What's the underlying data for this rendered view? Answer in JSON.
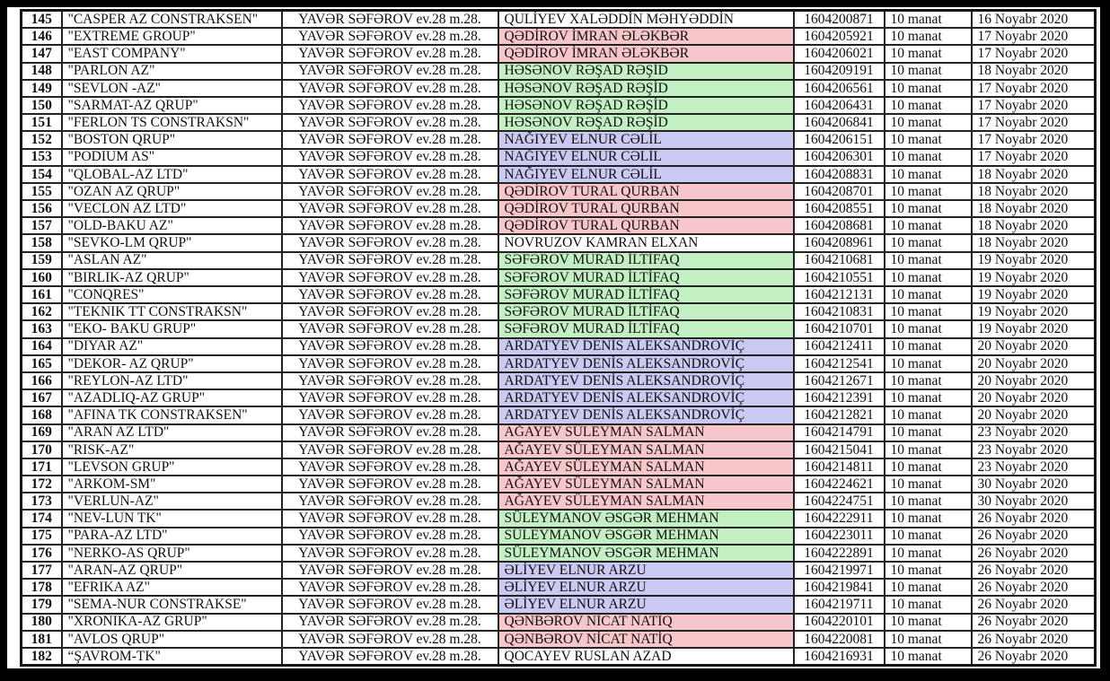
{
  "highlight_colors": {
    "none": "#ffffff",
    "pink": "#f7c6cb",
    "green": "#c2f0c2",
    "blue": "#c9c9f1"
  },
  "table": {
    "rows": [
      {
        "n": "145",
        "company": "\"CASPER AZ CONSTRAKSEN\"",
        "address": "YAVƏR SƏFƏROV ev.28 m.28.",
        "person": "QULİYEV XALƏDDİN MƏHYƏDDİN",
        "number": "1604200871",
        "amount": "10 manat",
        "date": "16 Noyabr 2020",
        "highlight": "none"
      },
      {
        "n": "146",
        "company": "\"EXTREME GROUP\"",
        "address": "YAVƏR SƏFƏROV ev.28 m.28.",
        "person": "QƏDİROV İMRAN ƏLƏKBƏR",
        "number": "1604205921",
        "amount": "10 manat",
        "date": "17 Noyabr 2020",
        "highlight": "pink"
      },
      {
        "n": "147",
        "company": "\"EAST COMPANY\"",
        "address": "YAVƏR SƏFƏROV ev.28 m.28.",
        "person": "QƏDİROV İMRAN ƏLƏKBƏR",
        "number": "1604206021",
        "amount": "10 manat",
        "date": "17 Noyabr 2020",
        "highlight": "pink"
      },
      {
        "n": "148",
        "company": "\"PARLON AZ\"",
        "address": "YAVƏR SƏFƏROV ev.28 m.28.",
        "person": "HƏSƏNOV RƏŞAD RƏŞİD",
        "number": "1604209191",
        "amount": "10 manat",
        "date": "18 Noyabr 2020",
        "highlight": "green"
      },
      {
        "n": "149",
        "company": "\"SEVLON -AZ\"",
        "address": "YAVƏR SƏFƏROV ev.28 m.28.",
        "person": "HƏSƏNOV RƏŞAD RƏŞİD",
        "number": "1604206561",
        "amount": "10 manat",
        "date": "17 Noyabr 2020",
        "highlight": "green"
      },
      {
        "n": "150",
        "company": "\"SARMAT-AZ QRUP\"",
        "address": "YAVƏR SƏFƏROV ev.28 m.28.",
        "person": "HƏSƏNOV RƏŞAD RƏŞİD",
        "number": "1604206431",
        "amount": "10 manat",
        "date": "17 Noyabr 2020",
        "highlight": "green"
      },
      {
        "n": "151",
        "company": "\"FERLON TS CONSTRAKSN\"",
        "address": "YAVƏR SƏFƏROV ev.28 m.28.",
        "person": "HƏSƏNOV RƏŞAD RƏŞİD",
        "number": "1604206841",
        "amount": "10 manat",
        "date": "17 Noyabr 2020",
        "highlight": "green"
      },
      {
        "n": "152",
        "company": "\"BOSTON QRUP\"",
        "address": "YAVƏR SƏFƏROV ev.28 m.28.",
        "person": "NAĞIYEV ELNUR CƏLİL",
        "number": "1604206151",
        "amount": "10 manat",
        "date": "17 Noyabr 2020",
        "highlight": "blue"
      },
      {
        "n": "153",
        "company": "\"PODIUM AS\"",
        "address": "YAVƏR SƏFƏROV ev.28 m.28.",
        "person": "NAĞIYEV ELNUR CƏLİL",
        "number": "1604206301",
        "amount": "10 manat",
        "date": "17 Noyabr 2020",
        "highlight": "blue"
      },
      {
        "n": "154",
        "company": "\"QLOBAL-AZ LTD\"",
        "address": "YAVƏR SƏFƏROV ev.28 m.28.",
        "person": "NAĞIYEV ELNUR CƏLİL",
        "number": "1604208831",
        "amount": "10 manat",
        "date": "18 Noyabr 2020",
        "highlight": "blue"
      },
      {
        "n": "155",
        "company": "\"OZAN AZ QRUP\"",
        "address": "YAVƏR SƏFƏROV ev.28 m.28.",
        "person": "QƏDİROV TURAL QURBAN",
        "number": "1604208701",
        "amount": "10 manat",
        "date": "18 Noyabr 2020",
        "highlight": "pink"
      },
      {
        "n": "156",
        "company": "\"VECLON AZ LTD\"",
        "address": "YAVƏR SƏFƏROV ev.28 m.28.",
        "person": "QƏDİROV TURAL QURBAN",
        "number": "1604208551",
        "amount": "10 manat",
        "date": "18 Noyabr 2020",
        "highlight": "pink"
      },
      {
        "n": "157",
        "company": "\"OLD-BAKU AZ\"",
        "address": "YAVƏR SƏFƏROV ev.28 m.28.",
        "person": "QƏDİROV TURAL QURBAN",
        "number": "1604208681",
        "amount": "10 manat",
        "date": "18 Noyabr 2020",
        "highlight": "pink"
      },
      {
        "n": "158",
        "company": "\"SEVKO-LM QRUP\"",
        "address": "YAVƏR SƏFƏROV ev.28 m.28.",
        "person": "NOVRUZOV KAMRAN ELXAN",
        "number": "1604208961",
        "amount": "10 manat",
        "date": "18 Noyabr 2020",
        "highlight": "none"
      },
      {
        "n": "159",
        "company": "\"ASLAN AZ\"",
        "address": "YAVƏR SƏFƏROV ev.28 m.28.",
        "person": "SƏFƏROV MURAD İLTİFAQ",
        "number": "1604210681",
        "amount": "10 manat",
        "date": "19 Noyabr 2020",
        "highlight": "green"
      },
      {
        "n": "160",
        "company": "\"BIRLIK-AZ QRUP\"",
        "address": "YAVƏR SƏFƏROV ev.28 m.28.",
        "person": "SƏFƏROV MURAD İLTİFAQ",
        "number": "1604210551",
        "amount": "10 manat",
        "date": "19 Noyabr 2020",
        "highlight": "green"
      },
      {
        "n": "161",
        "company": "\"CONQRES\"",
        "address": "YAVƏR SƏFƏROV ev.28 m.28.",
        "person": "SƏFƏROV MURAD İLTİFAQ",
        "number": "1604212131",
        "amount": "10 manat",
        "date": "19 Noyabr 2020",
        "highlight": "green"
      },
      {
        "n": "162",
        "company": "\"TEKNIK TT CONSTRAKSN\"",
        "address": "YAVƏR SƏFƏROV ev.28 m.28.",
        "person": "SƏFƏROV MURAD İLTİFAQ",
        "number": "1604210831",
        "amount": "10 manat",
        "date": "19 Noyabr 2020",
        "highlight": "green"
      },
      {
        "n": "163",
        "company": "\"EKO- BAKU GRUP\"",
        "address": "YAVƏR SƏFƏROV ev.28 m.28.",
        "person": "SƏFƏROV MURAD İLTİFAQ",
        "number": "1604210701",
        "amount": "10 manat",
        "date": "19 Noyabr 2020",
        "highlight": "green"
      },
      {
        "n": "164",
        "company": "\"DIYAR AZ\"",
        "address": "YAVƏR SƏFƏROV ev.28 m.28.",
        "person": "ARDATYEV DENİS ALEKSANDROVİÇ",
        "number": "1604212411",
        "amount": "10 manat",
        "date": "20 Noyabr 2020",
        "highlight": "blue"
      },
      {
        "n": "165",
        "company": "\"DEKOR- AZ QRUP\"",
        "address": "YAVƏR SƏFƏROV ev.28 m.28.",
        "person": "ARDATYEV DENİS ALEKSANDROVİÇ",
        "number": "1604212541",
        "amount": "10 manat",
        "date": "20 Noyabr 2020",
        "highlight": "blue"
      },
      {
        "n": "166",
        "company": "\"REYLON-AZ LTD\"",
        "address": "YAVƏR SƏFƏROV ev.28 m.28.",
        "person": "ARDATYEV DENİS ALEKSANDROVİÇ",
        "number": "1604212671",
        "amount": "10 manat",
        "date": "20 Noyabr 2020",
        "highlight": "blue"
      },
      {
        "n": "167",
        "company": "\"AZADLIQ-AZ GRUP\"",
        "address": "YAVƏR SƏFƏROV ev.28 m.28.",
        "person": "ARDATYEV DENİS ALEKSANDROVİÇ",
        "number": "1604212391",
        "amount": "10 manat",
        "date": "20 Noyabr 2020",
        "highlight": "blue"
      },
      {
        "n": "168",
        "company": "\"AFINA TK CONSTRAKSEN\"",
        "address": "YAVƏR SƏFƏROV ev.28 m.28.",
        "person": "ARDATYEV DENİS ALEKSANDROVİÇ",
        "number": "1604212821",
        "amount": "10 manat",
        "date": "20 Noyabr 2020",
        "highlight": "blue"
      },
      {
        "n": "169",
        "company": "\"ARAN AZ LTD\"",
        "address": "YAVƏR SƏFƏROV ev.28 m.28.",
        "person": "AĞAYEV SÜLEYMAN SALMAN",
        "number": "1604214791",
        "amount": "10 manat",
        "date": "23 Noyabr 2020",
        "highlight": "pink"
      },
      {
        "n": "170",
        "company": "\"RISK-AZ\"",
        "address": "YAVƏR SƏFƏROV ev.28 m.28.",
        "person": "AĞAYEV SÜLEYMAN SALMAN",
        "number": "1604215041",
        "amount": "10 manat",
        "date": "23 Noyabr 2020",
        "highlight": "pink"
      },
      {
        "n": "171",
        "company": "\"LEVSON GRUP\"",
        "address": "YAVƏR SƏFƏROV ev.28 m.28.",
        "person": "AĞAYEV SÜLEYMAN SALMAN",
        "number": "1604214811",
        "amount": "10 manat",
        "date": "23 Noyabr 2020",
        "highlight": "pink"
      },
      {
        "n": "172",
        "company": "\"ARKOM-SM\"",
        "address": "YAVƏR SƏFƏROV ev.28 m.28.",
        "person": "AĞAYEV SÜLEYMAN SALMAN",
        "number": "1604224621",
        "amount": "10 manat",
        "date": "30 Noyabr 2020",
        "highlight": "pink"
      },
      {
        "n": "173",
        "company": "\"VERLUN-AZ\"",
        "address": "YAVƏR SƏFƏROV ev.28 m.28.",
        "person": "AĞAYEV SÜLEYMAN SALMAN",
        "number": "1604224751",
        "amount": "10 manat",
        "date": "30 Noyabr 2020",
        "highlight": "pink"
      },
      {
        "n": "174",
        "company": "\"NEV-LUN TK\"",
        "address": "YAVƏR SƏFƏROV ev.28 m.28.",
        "person": "SÜLEYMANOV ƏSGƏR MEHMAN",
        "number": "1604222911",
        "amount": "10 manat",
        "date": "26 Noyabr 2020",
        "highlight": "green"
      },
      {
        "n": "175",
        "company": "\"PARA-AZ LTD\"",
        "address": "YAVƏR SƏFƏROV ev.28 m.28.",
        "person": "SÜLEYMANOV ƏSGƏR MEHMAN",
        "number": "1604223011",
        "amount": "10 manat",
        "date": "26 Noyabr 2020",
        "highlight": "green"
      },
      {
        "n": "176",
        "company": "\"NERKO-AS QRUP\"",
        "address": "YAVƏR SƏFƏROV ev.28 m.28.",
        "person": "SÜLEYMANOV ƏSGƏR MEHMAN",
        "number": "1604222891",
        "amount": "10 manat",
        "date": "26 Noyabr 2020",
        "highlight": "green"
      },
      {
        "n": "177",
        "company": "\"ARAN-AZ QRUP\"",
        "address": "YAVƏR SƏFƏROV ev.28 m.28.",
        "person": "ƏLİYEV ELNUR ARZU",
        "number": "1604219971",
        "amount": "10 manat",
        "date": "26 Noyabr 2020",
        "highlight": "blue"
      },
      {
        "n": "178",
        "company": "\"EFRIKA AZ\"",
        "address": "YAVƏR SƏFƏROV ev.28 m.28.",
        "person": "ƏLİYEV ELNUR ARZU",
        "number": "1604219841",
        "amount": "10 manat",
        "date": "26 Noyabr 2020",
        "highlight": "blue"
      },
      {
        "n": "179",
        "company": "\"SEMA-NUR CONSTRAKSE\"",
        "address": "YAVƏR SƏFƏROV ev.28 m.28.",
        "person": "ƏLİYEV ELNUR ARZU",
        "number": "1604219711",
        "amount": "10 manat",
        "date": "26 Noyabr 2020",
        "highlight": "blue"
      },
      {
        "n": "180",
        "company": "\"XRONIKA-AZ GRUP\"",
        "address": "YAVƏR SƏFƏROV ev.28 m.28.",
        "person": "QƏNBƏROV NİCAT NATİQ",
        "number": "1604220101",
        "amount": "10 manat",
        "date": "26 Noyabr 2020",
        "highlight": "pink"
      },
      {
        "n": "181",
        "company": "\"AVLOS QRUP\"",
        "address": "YAVƏR SƏFƏROV ev.28 m.28.",
        "person": "QƏNBƏROV NİCAT NATİQ",
        "number": "1604220081",
        "amount": "10 manat",
        "date": "26 Noyabr 2020",
        "highlight": "pink"
      },
      {
        "n": "182",
        "company": "“ŞAVROM-TK\"",
        "address": "YAVƏR SƏFƏROV ev.28 m.28.",
        "person": "QOCAYEV RUSLAN AZAD",
        "number": "1604216931",
        "amount": "10 manat",
        "date": "26 Noyabr 2020",
        "highlight": "none"
      }
    ]
  }
}
